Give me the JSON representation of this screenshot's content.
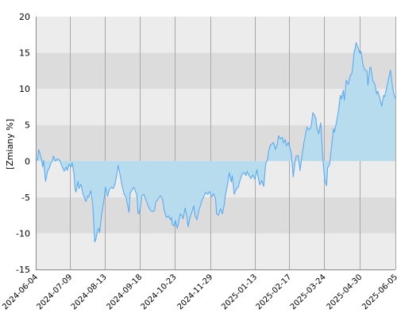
{
  "chart_data": {
    "type": "area",
    "title": "",
    "xlabel": "",
    "ylabel": "[Zmiany %]",
    "ylim": [
      -15,
      20
    ],
    "yticks": [
      -15,
      -10,
      -5,
      0,
      5,
      10,
      15,
      20
    ],
    "xlim": [
      "2024-06-04",
      "2025-06-05"
    ],
    "xticks": [
      "2024-06-04",
      "2024-07-09",
      "2024-08-13",
      "2024-09-18",
      "2024-10-23",
      "2024-11-29",
      "2025-01-13",
      "2025-02-17",
      "2025-03-24",
      "2025-04-30",
      "2025-06-05"
    ],
    "grid": true,
    "colors": {
      "line": "#5aabf2",
      "fill": "#b7dcee",
      "band_dark": "#dcdcdc",
      "band_light": "#ececec",
      "gridline": "#a8a8a8"
    },
    "series": [
      {
        "values": [
          [
            "2024-06-04",
            0.0
          ],
          [
            "2024-06-06",
            0.3
          ],
          [
            "2024-06-07",
            1.6
          ],
          [
            "2024-06-08",
            1.2
          ],
          [
            "2024-06-10",
            0.2
          ],
          [
            "2024-06-11",
            -0.8
          ],
          [
            "2024-06-12",
            0.1
          ],
          [
            "2024-06-13",
            -1.5
          ],
          [
            "2024-06-14",
            -2.8
          ],
          [
            "2024-06-16",
            -1.4
          ],
          [
            "2024-06-18",
            -0.9
          ],
          [
            "2024-06-19",
            -0.4
          ],
          [
            "2024-06-21",
            0.1
          ],
          [
            "2024-06-22",
            0.7
          ],
          [
            "2024-06-24",
            0.0
          ],
          [
            "2024-06-26",
            0.3
          ],
          [
            "2024-06-28",
            0.2
          ],
          [
            "2024-06-29",
            -0.1
          ],
          [
            "2024-07-01",
            -0.8
          ],
          [
            "2024-07-03",
            -1.4
          ],
          [
            "2024-07-05",
            -0.8
          ],
          [
            "2024-07-06",
            -1.3
          ],
          [
            "2024-07-08",
            -0.4
          ],
          [
            "2024-07-10",
            -0.8
          ],
          [
            "2024-07-11",
            -0.2
          ],
          [
            "2024-07-13",
            -1.8
          ],
          [
            "2024-07-14",
            -3.9
          ],
          [
            "2024-07-15",
            -4.3
          ],
          [
            "2024-07-17",
            -2.8
          ],
          [
            "2024-07-18",
            -3.8
          ],
          [
            "2024-07-20",
            -3.2
          ],
          [
            "2024-07-22",
            -4.5
          ],
          [
            "2024-07-24",
            -5.2
          ],
          [
            "2024-07-25",
            -5.6
          ],
          [
            "2024-07-27",
            -4.8
          ],
          [
            "2024-07-28",
            -5.0
          ],
          [
            "2024-07-30",
            -4.1
          ],
          [
            "2024-08-01",
            -6.0
          ],
          [
            "2024-08-02",
            -8.5
          ],
          [
            "2024-08-03",
            -11.2
          ],
          [
            "2024-08-04",
            -10.9
          ],
          [
            "2024-08-06",
            -9.6
          ],
          [
            "2024-08-07",
            -9.3
          ],
          [
            "2024-08-08",
            -9.9
          ],
          [
            "2024-08-10",
            -7.5
          ],
          [
            "2024-08-11",
            -6.6
          ],
          [
            "2024-08-13",
            -4.8
          ],
          [
            "2024-08-14",
            -3.6
          ],
          [
            "2024-08-16",
            -4.9
          ],
          [
            "2024-08-18",
            -3.9
          ],
          [
            "2024-08-20",
            -3.6
          ],
          [
            "2024-08-22",
            -3.8
          ],
          [
            "2024-08-24",
            -3.0
          ],
          [
            "2024-08-25",
            -2.2
          ],
          [
            "2024-08-27",
            -0.6
          ],
          [
            "2024-08-29",
            -2.0
          ],
          [
            "2024-08-31",
            -3.5
          ],
          [
            "2024-09-02",
            -4.6
          ],
          [
            "2024-09-04",
            -5.0
          ],
          [
            "2024-09-05",
            -5.8
          ],
          [
            "2024-09-07",
            -7.1
          ],
          [
            "2024-09-08",
            -4.5
          ],
          [
            "2024-09-10",
            -4.0
          ],
          [
            "2024-09-12",
            -3.6
          ],
          [
            "2024-09-13",
            -4.0
          ],
          [
            "2024-09-15",
            -4.8
          ],
          [
            "2024-09-16",
            -7.2
          ],
          [
            "2024-09-17",
            -7.3
          ],
          [
            "2024-09-19",
            -6.0
          ],
          [
            "2024-09-20",
            -4.8
          ],
          [
            "2024-09-22",
            -4.6
          ],
          [
            "2024-09-24",
            -5.3
          ],
          [
            "2024-09-26",
            -6.1
          ],
          [
            "2024-09-28",
            -6.6
          ],
          [
            "2024-09-29",
            -6.9
          ],
          [
            "2024-10-01",
            -7.0
          ],
          [
            "2024-10-03",
            -6.8
          ],
          [
            "2024-10-04",
            -5.7
          ],
          [
            "2024-10-06",
            -5.4
          ],
          [
            "2024-10-08",
            -4.9
          ],
          [
            "2024-10-09",
            -4.8
          ],
          [
            "2024-10-11",
            -5.3
          ],
          [
            "2024-10-13",
            -7.0
          ],
          [
            "2024-10-15",
            -7.8
          ],
          [
            "2024-10-17",
            -7.6
          ],
          [
            "2024-10-19",
            -8.1
          ],
          [
            "2024-10-20",
            -7.8
          ],
          [
            "2024-10-21",
            -8.8
          ],
          [
            "2024-10-23",
            -9.0
          ],
          [
            "2024-10-24",
            -8.2
          ],
          [
            "2024-10-26",
            -9.3
          ],
          [
            "2024-10-27",
            -8.8
          ],
          [
            "2024-10-29",
            -7.3
          ],
          [
            "2024-10-31",
            -7.6
          ],
          [
            "2024-11-01",
            -8.0
          ],
          [
            "2024-11-03",
            -6.5
          ],
          [
            "2024-11-05",
            -7.8
          ],
          [
            "2024-11-06",
            -9.1
          ],
          [
            "2024-11-08",
            -7.8
          ],
          [
            "2024-11-10",
            -7.0
          ],
          [
            "2024-11-12",
            -6.2
          ],
          [
            "2024-11-13",
            -7.5
          ],
          [
            "2024-11-15",
            -8.1
          ],
          [
            "2024-11-17",
            -6.8
          ],
          [
            "2024-11-19",
            -6.0
          ],
          [
            "2024-11-20",
            -5.5
          ],
          [
            "2024-11-22",
            -4.9
          ],
          [
            "2024-11-24",
            -4.3
          ],
          [
            "2024-11-26",
            -4.6
          ],
          [
            "2024-11-28",
            -4.2
          ],
          [
            "2024-11-30",
            -5.0
          ],
          [
            "2024-12-02",
            -4.5
          ],
          [
            "2024-12-04",
            -5.2
          ],
          [
            "2024-12-05",
            -7.3
          ],
          [
            "2024-12-07",
            -7.5
          ],
          [
            "2024-12-09",
            -6.6
          ],
          [
            "2024-12-11",
            -7.3
          ],
          [
            "2024-12-13",
            -5.9
          ],
          [
            "2024-12-14",
            -4.7
          ],
          [
            "2024-12-16",
            -3.4
          ],
          [
            "2024-12-18",
            -1.6
          ],
          [
            "2024-12-20",
            -2.9
          ],
          [
            "2024-12-21",
            -2.0
          ],
          [
            "2024-12-23",
            -4.6
          ],
          [
            "2024-12-25",
            -3.9
          ],
          [
            "2024-12-27",
            -3.6
          ],
          [
            "2024-12-29",
            -2.6
          ],
          [
            "2024-12-31",
            -1.8
          ],
          [
            "2025-01-02",
            -1.6
          ],
          [
            "2025-01-04",
            -2.0
          ],
          [
            "2025-01-05",
            -1.4
          ],
          [
            "2025-01-07",
            -2.0
          ],
          [
            "2025-01-09",
            -2.4
          ],
          [
            "2025-01-11",
            -1.9
          ],
          [
            "2025-01-13",
            -2.5
          ],
          [
            "2025-01-15",
            -1.2
          ],
          [
            "2025-01-16",
            -2.0
          ],
          [
            "2025-01-18",
            -3.3
          ],
          [
            "2025-01-20",
            -2.7
          ],
          [
            "2025-01-22",
            -3.5
          ],
          [
            "2025-01-24",
            -0.4
          ],
          [
            "2025-01-26",
            0.3
          ],
          [
            "2025-01-27",
            1.4
          ],
          [
            "2025-01-29",
            2.3
          ],
          [
            "2025-01-31",
            2.4
          ],
          [
            "2025-02-01",
            2.6
          ],
          [
            "2025-02-03",
            1.6
          ],
          [
            "2025-02-05",
            2.4
          ],
          [
            "2025-02-06",
            3.5
          ],
          [
            "2025-02-08",
            3.1
          ],
          [
            "2025-02-10",
            3.3
          ],
          [
            "2025-02-11",
            2.5
          ],
          [
            "2025-02-13",
            3.0
          ],
          [
            "2025-02-14",
            2.1
          ],
          [
            "2025-02-16",
            2.6
          ],
          [
            "2025-02-18",
            1.6
          ],
          [
            "2025-02-19",
            1.2
          ],
          [
            "2025-02-21",
            -2.2
          ],
          [
            "2025-02-23",
            0.0
          ],
          [
            "2025-02-24",
            0.7
          ],
          [
            "2025-02-26",
            0.8
          ],
          [
            "2025-02-28",
            -1.3
          ],
          [
            "2025-03-02",
            0.9
          ],
          [
            "2025-03-04",
            2.6
          ],
          [
            "2025-03-06",
            4.1
          ],
          [
            "2025-03-07",
            4.7
          ],
          [
            "2025-03-09",
            4.3
          ],
          [
            "2025-03-11",
            4.6
          ],
          [
            "2025-03-13",
            6.7
          ],
          [
            "2025-03-14",
            6.5
          ],
          [
            "2025-03-16",
            6.0
          ],
          [
            "2025-03-17",
            4.6
          ],
          [
            "2025-03-19",
            3.8
          ],
          [
            "2025-03-21",
            5.3
          ],
          [
            "2025-03-23",
            0.7
          ],
          [
            "2025-03-25",
            -2.6
          ],
          [
            "2025-03-27",
            -3.4
          ],
          [
            "2025-03-28",
            -0.9
          ],
          [
            "2025-03-30",
            -0.5
          ],
          [
            "2025-04-01",
            2.0
          ],
          [
            "2025-04-03",
            4.5
          ],
          [
            "2025-04-04",
            4.0
          ],
          [
            "2025-04-06",
            5.4
          ],
          [
            "2025-04-08",
            6.9
          ],
          [
            "2025-04-10",
            9.1
          ],
          [
            "2025-04-11",
            8.6
          ],
          [
            "2025-04-13",
            9.8
          ],
          [
            "2025-04-14",
            8.4
          ],
          [
            "2025-04-16",
            11.2
          ],
          [
            "2025-04-18",
            10.6
          ],
          [
            "2025-04-20",
            11.8
          ],
          [
            "2025-04-22",
            12.3
          ],
          [
            "2025-04-24",
            15.1
          ],
          [
            "2025-04-25",
            15.6
          ],
          [
            "2025-04-26",
            16.4
          ],
          [
            "2025-04-28",
            15.7
          ],
          [
            "2025-04-30",
            14.9
          ],
          [
            "2025-05-01",
            15.2
          ],
          [
            "2025-05-03",
            13.3
          ],
          [
            "2025-05-05",
            12.6
          ],
          [
            "2025-05-07",
            12.5
          ],
          [
            "2025-05-08",
            10.5
          ],
          [
            "2025-05-10",
            12.9
          ],
          [
            "2025-05-11",
            13.0
          ],
          [
            "2025-05-13",
            11.1
          ],
          [
            "2025-05-15",
            10.7
          ],
          [
            "2025-05-17",
            9.3
          ],
          [
            "2025-05-18",
            9.7
          ],
          [
            "2025-05-20",
            8.8
          ],
          [
            "2025-05-22",
            7.6
          ],
          [
            "2025-05-24",
            9.1
          ],
          [
            "2025-05-25",
            8.9
          ],
          [
            "2025-05-27",
            10.1
          ],
          [
            "2025-05-29",
            11.4
          ],
          [
            "2025-05-31",
            12.6
          ],
          [
            "2025-06-02",
            10.3
          ],
          [
            "2025-06-03",
            9.7
          ],
          [
            "2025-06-04",
            9.0
          ],
          [
            "2025-06-05",
            8.7
          ]
        ]
      }
    ]
  }
}
